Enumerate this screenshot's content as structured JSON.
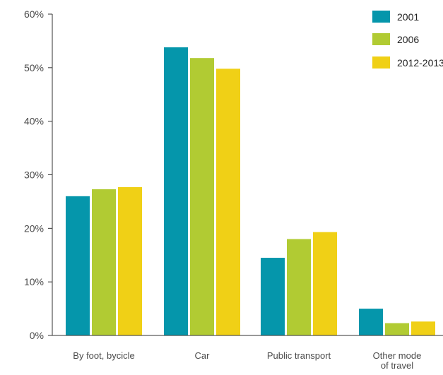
{
  "chart_data": {
    "type": "bar",
    "title": "",
    "xlabel": "",
    "ylabel": "",
    "categories": [
      [
        "By foot, bycicle"
      ],
      [
        "Car"
      ],
      [
        "Public transport"
      ],
      [
        "Other mode",
        "of travel"
      ]
    ],
    "series": [
      {
        "name": "2001",
        "color": "#0596ab",
        "values": [
          26.0,
          53.8,
          14.5,
          5.0
        ]
      },
      {
        "name": "2006",
        "color": "#b1cb33",
        "values": [
          27.3,
          51.8,
          18.0,
          2.3
        ]
      },
      {
        "name": "2012-2013",
        "color": "#f0d016",
        "values": [
          27.7,
          49.8,
          19.3,
          2.6
        ]
      }
    ],
    "ylim": [
      0,
      60
    ],
    "yticks": [
      0,
      10,
      20,
      30,
      40,
      50,
      60
    ],
    "ytick_labels": [
      "0%",
      "10%",
      "20%",
      "30%",
      "40%",
      "50%",
      "60%"
    ],
    "grid": false,
    "legend_position": "top-right"
  }
}
